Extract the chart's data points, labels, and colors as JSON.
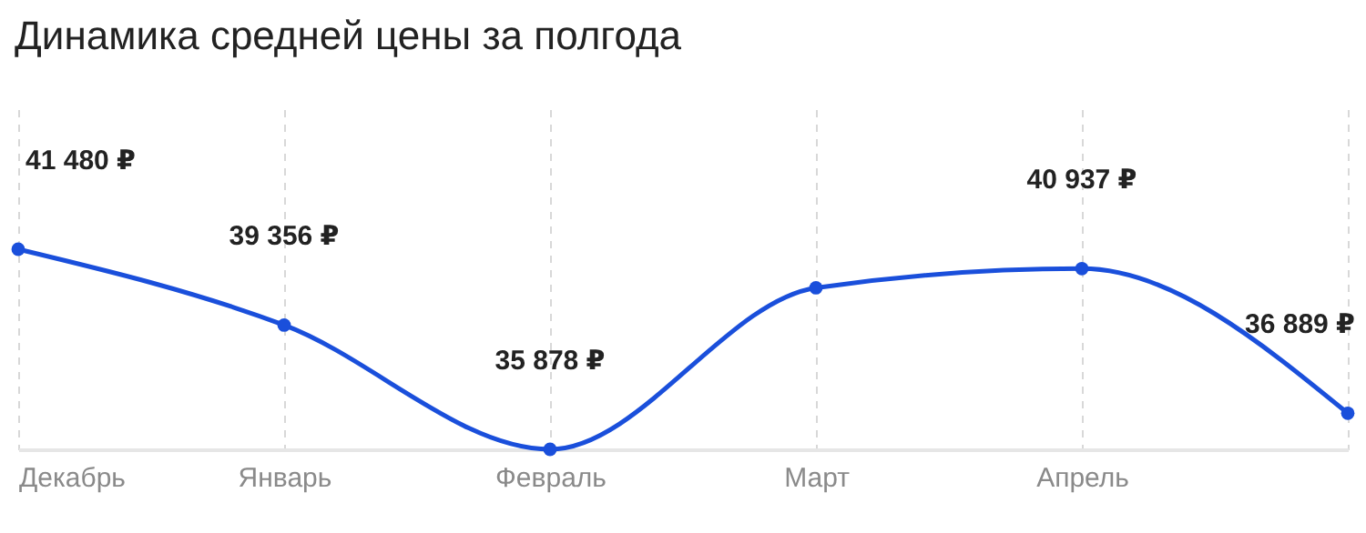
{
  "chart_data": {
    "type": "line",
    "title": "Динамика средней цены за полгода",
    "categories": [
      "Декабрь",
      "Январь",
      "Февраль",
      "Март",
      "Апрель",
      null
    ],
    "series": [
      {
        "color": "#1a4fdb",
        "values": [
          41480,
          39356,
          35878,
          40400,
          40937,
          36889
        ],
        "value_labels": [
          "41 480 ₽",
          "39 356 ₽",
          "35 878 ₽",
          null,
          "40 937 ₽",
          "36 889 ₽"
        ]
      }
    ],
    "marker": "circle",
    "line_style": "solid",
    "grid": "x"
  }
}
